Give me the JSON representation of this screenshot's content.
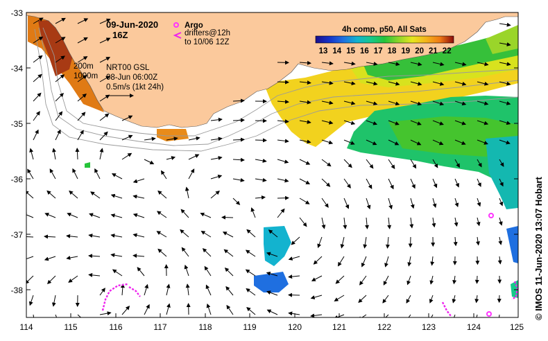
{
  "map": {
    "date": "09-Jun-2020",
    "time": "16Z",
    "sst_title": "4h comp, p50, All Sats",
    "colorbar_ticks": [
      "13",
      "14",
      "15",
      "16",
      "17",
      "18",
      "19",
      "20",
      "21",
      "22"
    ],
    "colorbar_colors": [
      "#1a0f8c",
      "#1433c8",
      "#1f6fe0",
      "#13b3cf",
      "#17c88c",
      "#26c43a",
      "#8cd52a",
      "#e6e61e",
      "#f5b41a",
      "#f07a14",
      "#c8281e",
      "#8c0a0a"
    ],
    "legend_argo": "Argo",
    "legend_drifters_1": "drifters@12h",
    "legend_drifters_2": "to 10/06 12Z",
    "contour_200": "200m",
    "contour_1000": "1000m",
    "currents_product": "NRT00 GSL",
    "currents_time": "08-Jun 06:00Z",
    "vector_scale": "0.5m/s (1kt 24h)",
    "credit": "© IMOS 11-Jun-2020 13:07 Hobart",
    "lat_labels": [
      "-33",
      "-34",
      "-35",
      "-36",
      "-37",
      "-38"
    ],
    "lon_labels": [
      "114",
      "115",
      "116",
      "117",
      "118",
      "119",
      "120",
      "121",
      "122",
      "123",
      "124",
      "125"
    ],
    "land_color": "#fbc99c",
    "argo_color": "#ff33ff",
    "drifter_color": "#ee22ee"
  }
}
